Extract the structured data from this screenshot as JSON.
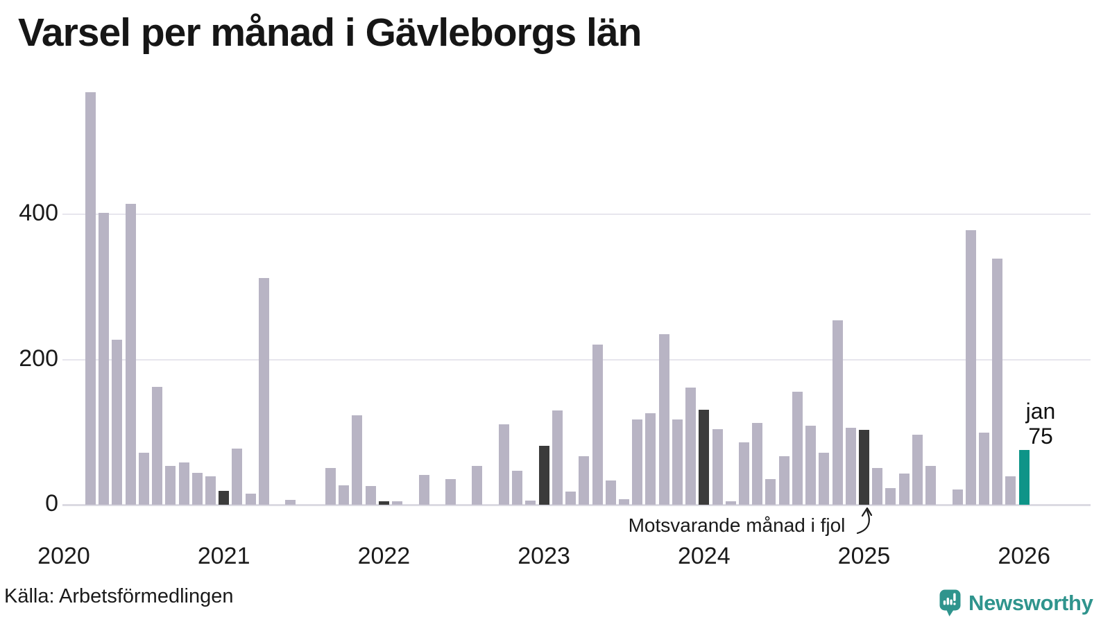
{
  "title": "Varsel per månad i Gävleborgs län",
  "source": "Källa: Arbetsförmedlingen",
  "brand": {
    "name": "Newsworthy",
    "icon": "speech-bubble-bar-chart-icon"
  },
  "annotation": {
    "text": "Motsvarande månad i fjol"
  },
  "highlight": {
    "month_label": "jan",
    "value_label": "75"
  },
  "colors": {
    "bar": "#b8b4c4",
    "bar_last_year": "#3b3b3b",
    "bar_highlight": "#0e9488",
    "logo": "#2f948d",
    "grid": "#e7e6ed",
    "axis": "#dbdae2",
    "text": "#1a1a1a"
  },
  "chart_data": {
    "type": "bar",
    "title": "Varsel per månad i Gävleborgs län",
    "xlabel": "",
    "ylabel": "",
    "start_month": "2020-01",
    "end_month": "2026-01",
    "yticks": [
      0,
      200,
      400
    ],
    "ylim": [
      0,
      580
    ],
    "grid": "horizontal",
    "legend": "none",
    "year_ticks": [
      {
        "label": "2020",
        "month_index": 0
      },
      {
        "label": "2021",
        "month_index": 12
      },
      {
        "label": "2022",
        "month_index": 24
      },
      {
        "label": "2023",
        "month_index": 36
      },
      {
        "label": "2024",
        "month_index": 48
      },
      {
        "label": "2025",
        "month_index": 60
      },
      {
        "label": "2026",
        "month_index": 72
      }
    ],
    "series": [
      {
        "name": "Varsel per månad",
        "values": [
          0,
          0,
          568,
          402,
          227,
          414,
          72,
          162,
          53,
          58,
          44,
          39,
          19,
          77,
          15,
          312,
          0,
          7,
          0,
          0,
          51,
          27,
          123,
          26,
          5,
          5,
          0,
          41,
          0,
          35,
          0,
          53,
          0,
          111,
          47,
          6,
          81,
          130,
          18,
          67,
          221,
          33,
          8,
          117,
          126,
          235,
          117,
          161,
          131,
          104,
          5,
          86,
          113,
          35,
          67,
          156,
          109,
          72,
          254,
          106,
          103,
          51,
          23,
          43,
          96,
          53,
          0,
          21,
          378,
          99,
          339,
          39,
          75
        ]
      }
    ],
    "last_year_month_indices": [
      12,
      24,
      36,
      48,
      60
    ],
    "highlight_month_index": 72,
    "highlight_value": 75
  }
}
